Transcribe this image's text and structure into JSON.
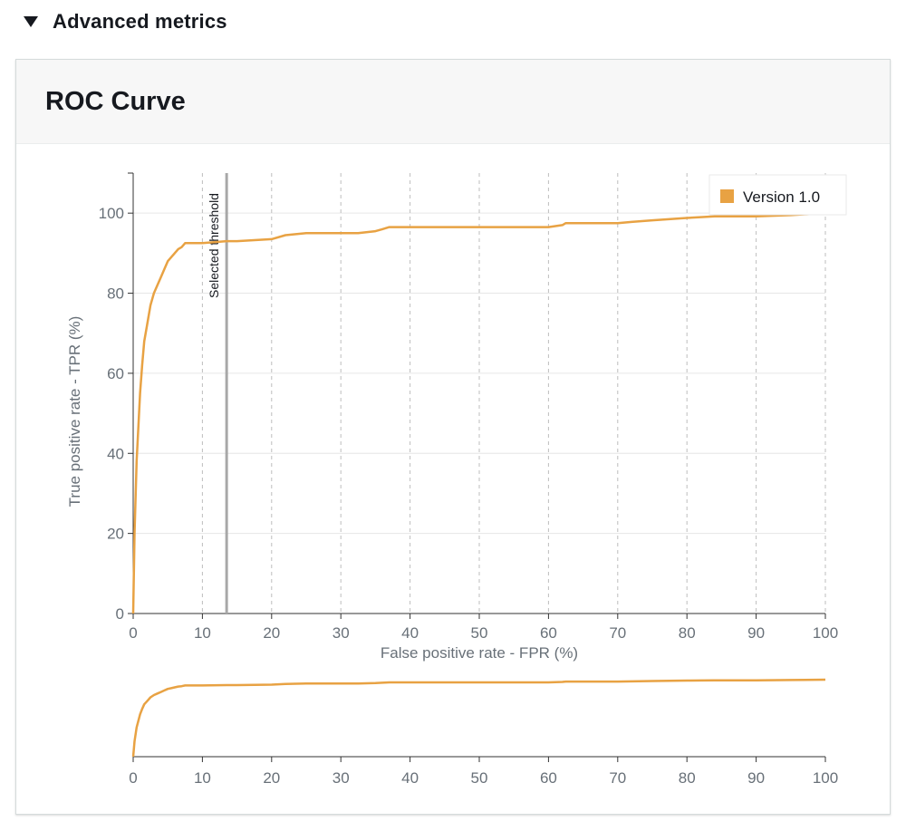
{
  "section": {
    "title": "Advanced metrics",
    "expanded_icon": "caret-down-icon"
  },
  "container": {
    "title": "ROC Curve"
  },
  "colors": {
    "series": "#e8a243",
    "axis": "#333333",
    "tick_text": "#687078",
    "grid": "#d5d5d5",
    "threshold": "#a8a8a8"
  },
  "chart_data": [
    {
      "type": "line",
      "title": "ROC Curve",
      "xlabel": "False positive rate - FPR (%)",
      "ylabel": "True positive rate - TPR (%)",
      "xlim": [
        0,
        100
      ],
      "ylim": [
        0,
        110
      ],
      "xticks": [
        0,
        10,
        20,
        30,
        40,
        50,
        60,
        70,
        80,
        90,
        100
      ],
      "yticks": [
        0,
        20,
        40,
        60,
        80,
        100
      ],
      "grid": "vertical dashed at x ticks, horizontal at y ticks",
      "legend": {
        "position": "top-right",
        "entries": [
          "Version 1.0"
        ]
      },
      "annotations": [
        {
          "type": "vertical-line",
          "label": "Selected threshold",
          "x": 13.5
        }
      ],
      "series": [
        {
          "name": "Version 1.0",
          "x": [
            0,
            0.2,
            0.5,
            1,
            1.3,
            1.6,
            2,
            2.5,
            3,
            3.5,
            4,
            4.5,
            5,
            5.5,
            6,
            6.5,
            7,
            7.5,
            10,
            13.5,
            15,
            20,
            22,
            25,
            30,
            32.5,
            35,
            36,
            37,
            40,
            45,
            50,
            55,
            60,
            62,
            62.5,
            65,
            70,
            72,
            75,
            80,
            82,
            84,
            85,
            90,
            95,
            100
          ],
          "y": [
            0,
            20,
            38,
            55,
            62,
            68,
            72,
            77,
            80,
            82,
            84,
            86,
            88,
            89,
            90,
            91,
            91.5,
            92.5,
            92.5,
            93,
            93,
            93.5,
            94.5,
            95,
            95,
            95,
            95.5,
            96,
            96.5,
            96.5,
            96.5,
            96.5,
            96.5,
            96.5,
            97,
            97.5,
            97.5,
            97.5,
            97.8,
            98.2,
            98.8,
            99,
            99.2,
            99.2,
            99.2,
            99.5,
            100
          ]
        }
      ]
    },
    {
      "type": "line",
      "title": "",
      "xlim": [
        0,
        100
      ],
      "xticks": [
        0,
        10,
        20,
        30,
        40,
        50,
        60,
        70,
        80,
        90,
        100
      ],
      "series": [
        {
          "name": "Version 1.0",
          "x": [
            0,
            0.2,
            0.5,
            1,
            1.3,
            1.6,
            2,
            2.5,
            3,
            3.5,
            4,
            4.5,
            5,
            5.5,
            6,
            6.5,
            7,
            7.5,
            10,
            13.5,
            15,
            20,
            22,
            25,
            30,
            32.5,
            35,
            36,
            37,
            40,
            45,
            50,
            55,
            60,
            62,
            62.5,
            65,
            70,
            72,
            75,
            80,
            82,
            84,
            85,
            90,
            95,
            100
          ],
          "y": [
            0,
            20,
            38,
            55,
            62,
            68,
            72,
            77,
            80,
            82,
            84,
            86,
            88,
            89,
            90,
            91,
            91.5,
            92.5,
            92.5,
            93,
            93,
            93.5,
            94.5,
            95,
            95,
            95,
            95.5,
            96,
            96.5,
            96.5,
            96.5,
            96.5,
            96.5,
            96.5,
            97,
            97.5,
            97.5,
            97.5,
            97.8,
            98.2,
            98.8,
            99,
            99.2,
            99.2,
            99.2,
            99.5,
            100
          ]
        }
      ]
    }
  ]
}
